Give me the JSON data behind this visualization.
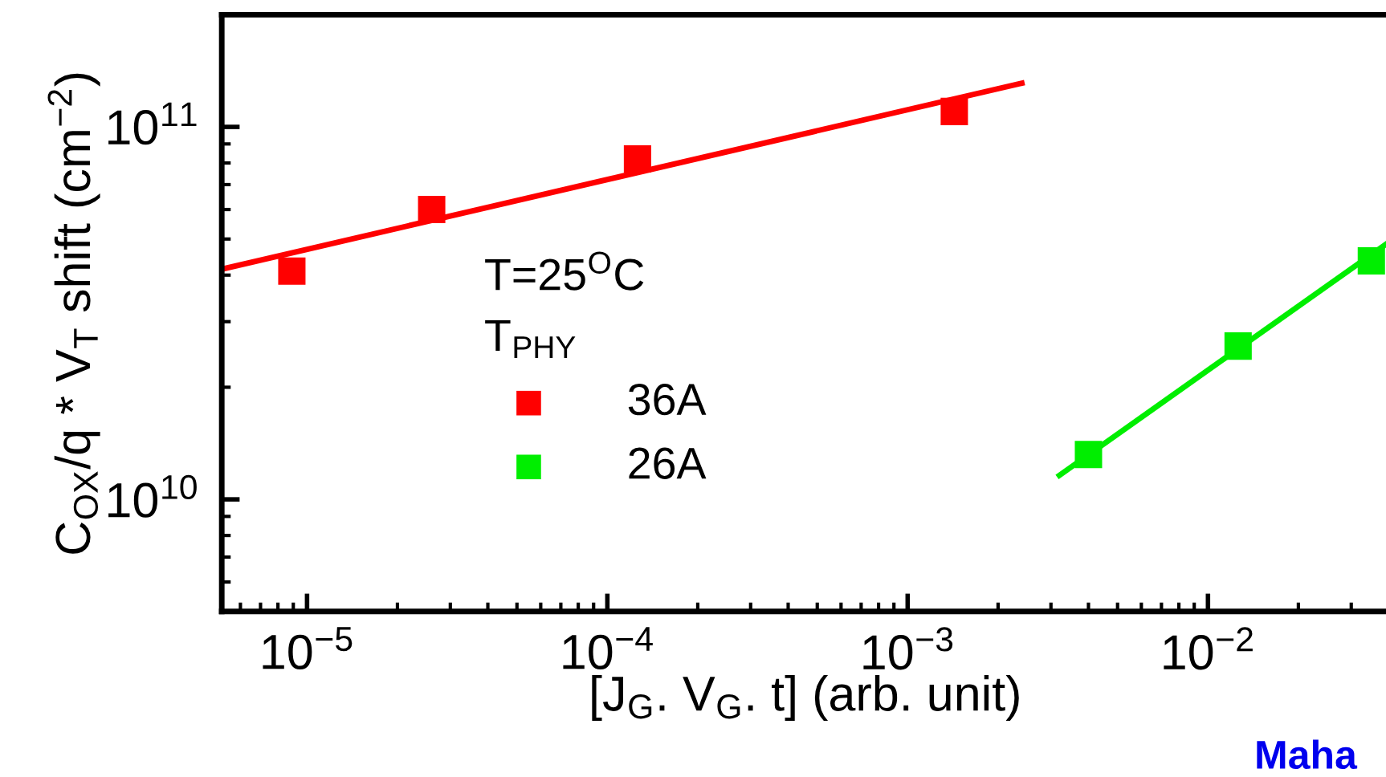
{
  "chart_data": {
    "type": "scatter",
    "xlabel": "[J$_{G}$. V$_{G}$. t] (arb. unit)",
    "ylabel": "C$_{OX}$/q * V$_{T}$ shift (cm$^{−2}$)",
    "legend_title": "T=25$^{O}$C\nT$_{PHY}$",
    "log": "xy",
    "legend": "center",
    "grid": false,
    "xlim": [
      5.2e-06,
      0.04
    ],
    "ylim": [
      5000000000.0,
      200000000000.0
    ],
    "xticks": [
      {
        "value": 1e-05,
        "label": "10$^{−5}$"
      },
      {
        "value": 0.0001,
        "label": "10$^{−4}$"
      },
      {
        "value": 0.001,
        "label": "10$^{−3}$"
      },
      {
        "value": 0.01,
        "label": "10$^{−2}$"
      }
    ],
    "yticks": [
      {
        "value": 10000000000.0,
        "label": "10$^{10}$"
      },
      {
        "value": 100000000000.0,
        "label": "10$^{11}$"
      }
    ],
    "series": [
      {
        "name": "36A",
        "marker": "square",
        "color": "#ff0000",
        "x": [
          8.9e-06,
          2.6e-05,
          0.000126,
          0.00143
        ],
        "values": [
          41000000000.0,
          60000000000.0,
          82000000000.0,
          110000000000.0
        ]
      },
      {
        "name": "26A",
        "marker": "square",
        "color": "#00ee00",
        "x": [
          0.004,
          0.0126,
          0.035
        ],
        "values": [
          13200000000.0,
          25800000000.0,
          43700000000.0
        ]
      },
      {
        "type": "line",
        "marker": "none",
        "color": "#ff0000",
        "x": [
          5.2e-06,
          0.0024
        ],
        "values": [
          41500000000.0,
          131000000000.0
        ]
      },
      {
        "type": "line",
        "marker": "none",
        "color": "#00ee00",
        "x": [
          0.0032,
          0.04
        ],
        "values": [
          11600000000.0,
          49000000000.0
        ]
      }
    ],
    "annotations": [
      "Maha"
    ]
  }
}
